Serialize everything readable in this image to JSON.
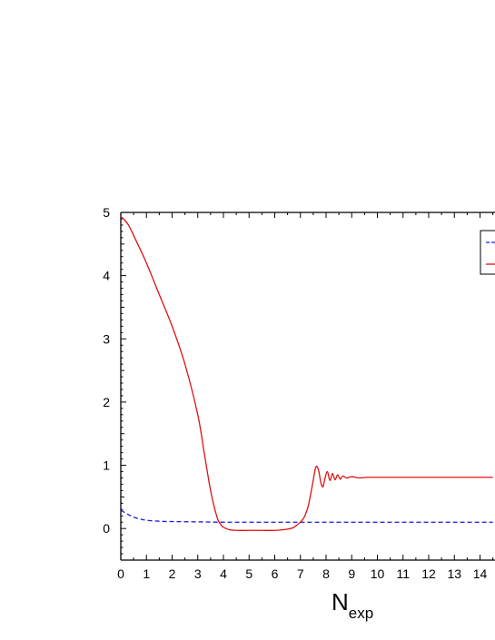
{
  "chart_data": {
    "type": "line",
    "title": "",
    "xlabel": "N",
    "xlabel_subscript": "exp",
    "ylabel": "",
    "xlim": [
      0,
      14.5
    ],
    "ylim": [
      -0.5,
      5
    ],
    "xticks": [
      "0",
      "1",
      "2",
      "3",
      "4",
      "5",
      "6",
      "7",
      "8",
      "9",
      "10",
      "11",
      "12",
      "13",
      "14"
    ],
    "yticks": [
      "0",
      "1",
      "2",
      "3",
      "4",
      "5"
    ],
    "grid": false,
    "legend": "top-right, partially cropped",
    "series": [
      {
        "style": "dashed",
        "color": "#1a1ad6",
        "x": [
          0,
          0.25,
          0.5,
          0.75,
          1.0,
          1.5,
          2.0,
          3.0,
          4.0,
          5.0,
          7.0,
          10.0,
          14.5
        ],
        "y": [
          0.29,
          0.23,
          0.18,
          0.15,
          0.13,
          0.115,
          0.11,
          0.105,
          0.1,
          0.1,
          0.1,
          0.1,
          0.1
        ]
      },
      {
        "style": "solid",
        "color": "#e01010",
        "x": [
          0,
          0.1,
          0.3,
          0.6,
          1.0,
          1.5,
          2.0,
          2.5,
          3.0,
          3.25,
          3.5,
          3.75,
          3.9,
          4.0,
          4.1,
          4.25,
          4.5,
          5.0,
          5.5,
          6.0,
          6.3,
          6.5,
          6.7,
          6.85,
          7.0,
          7.15,
          7.3,
          7.45,
          7.55,
          7.6,
          7.65,
          7.72,
          7.8,
          7.88,
          7.95,
          8.05,
          8.15,
          8.25,
          8.35,
          8.45,
          8.55,
          8.65,
          8.8,
          9.0,
          9.3,
          9.6,
          10.0,
          11.0,
          12.0,
          13.0,
          14.5
        ],
        "y": [
          4.93,
          4.9,
          4.8,
          4.55,
          4.2,
          3.7,
          3.2,
          2.6,
          1.8,
          1.2,
          0.6,
          0.18,
          0.06,
          0.02,
          0.0,
          -0.02,
          -0.03,
          -0.03,
          -0.03,
          -0.03,
          -0.02,
          -0.01,
          0.01,
          0.05,
          0.1,
          0.18,
          0.35,
          0.65,
          0.88,
          0.97,
          0.98,
          0.9,
          0.72,
          0.66,
          0.78,
          0.9,
          0.76,
          0.87,
          0.77,
          0.85,
          0.78,
          0.83,
          0.8,
          0.82,
          0.8,
          0.81,
          0.81,
          0.81,
          0.81,
          0.81,
          0.81
        ]
      }
    ]
  }
}
